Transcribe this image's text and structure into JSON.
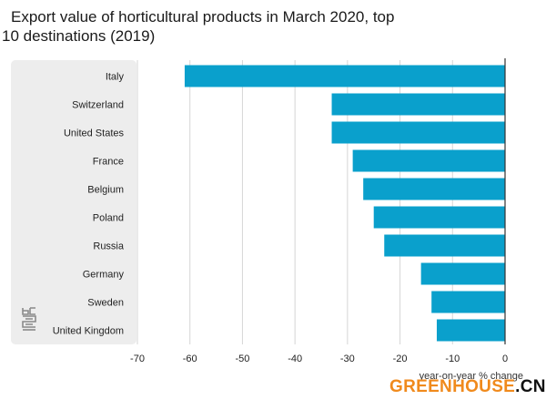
{
  "title": {
    "line1": "Export value of horticultural products in March 2020, top",
    "line2": "10 destinations (2019)"
  },
  "chart_data": {
    "type": "bar",
    "orientation": "horizontal",
    "categories": [
      "Italy",
      "Switzerland",
      "United States",
      "France",
      "Belgium",
      "Poland",
      "Russia",
      "Germany",
      "Sweden",
      "United Kingdom"
    ],
    "values": [
      -61,
      -33,
      -33,
      -29,
      -27,
      -25,
      -23,
      -16,
      -14,
      -13
    ],
    "xlabel": "year-on-year % change",
    "xlim": [
      -70,
      0
    ],
    "xticks": [
      -70,
      -60,
      -50,
      -40,
      -30,
      -20,
      -10,
      0
    ],
    "grid": true,
    "bar_color": "#0aa0cc"
  },
  "watermark": {
    "part1": "GREENHOUSE",
    "part2": ".CN"
  }
}
